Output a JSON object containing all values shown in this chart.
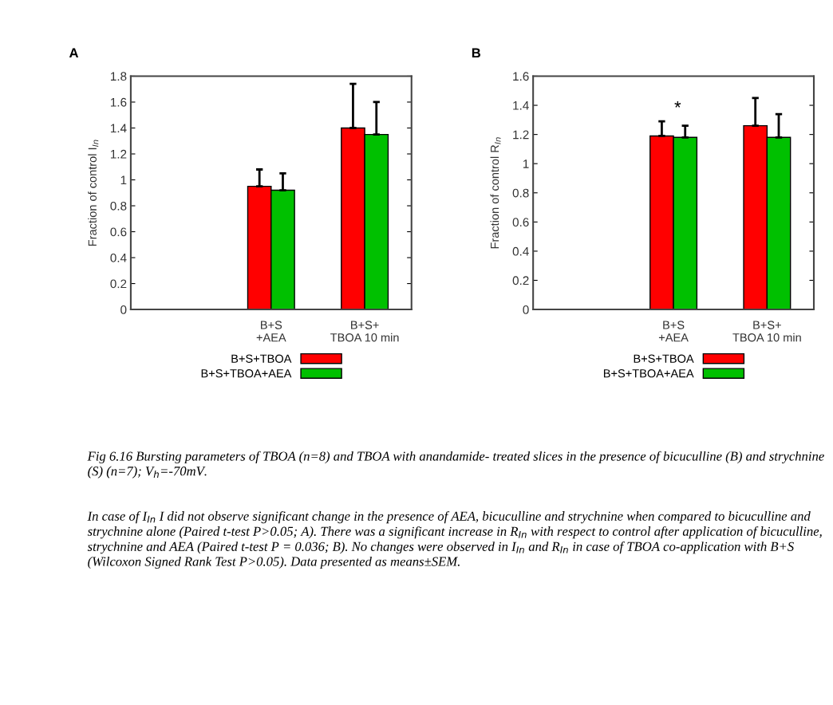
{
  "chart_data": [
    {
      "type": "bar",
      "title": "A",
      "ylabel": "Fraction of control I$_{In}$",
      "categories": [
        null,
        "B+S\n+AEA",
        "B+S+\nTBOA 10 min"
      ],
      "ylim": [
        0,
        1.8
      ],
      "yticks": [
        0,
        0.2,
        0.4,
        0.6,
        0.8,
        1,
        1.2,
        1.4,
        1.6,
        1.8
      ],
      "legend": "bottom",
      "grid": false,
      "series": [
        {
          "name": "B+S+TBOA",
          "color": "#ff0000",
          "values": [
            null,
            0.95,
            1.4
          ],
          "errors": [
            null,
            [
              0.95,
              1.08
            ],
            [
              1.4,
              1.74
            ]
          ]
        },
        {
          "name": "B+S+TBOA+AEA",
          "color": "#00c000",
          "values": [
            null,
            0.92,
            1.35
          ],
          "errors": [
            null,
            [
              0.92,
              1.05
            ],
            [
              1.35,
              1.6
            ]
          ]
        }
      ]
    },
    {
      "type": "bar",
      "title": "B",
      "ylabel": "Fraction of control R$_{In}$",
      "categories": [
        null,
        "B+S\n+AEA",
        "B+S+\nTBOA 10 min"
      ],
      "ylim": [
        0,
        1.6
      ],
      "yticks": [
        0,
        0.2,
        0.4,
        0.6,
        0.8,
        1,
        1.2,
        1.4,
        1.6
      ],
      "legend": "bottom",
      "grid": false,
      "annotations": [
        "*",
        "Fig 6.16 Bursting parameters of TBOA (n=8) and TBOA with anandamide- treated slices in the presence of bicuculline (B) and strychnine (S) (n=7); V$_{h}$=-70mV.",
        "In case of I$_{In}$ I did not observe significant change in the presence of AEA, bicuculline and strychnine when compared to bicuculline and strychnine alone (Paired t-test P>0.05; A). There was a significant increase in R$_{In}$ with respect to control after application of bicuculline, strychnine and AEA (Paired t-test P = 0.036; B). No changes were observed in I$_{In}$ and R$_{In}$ in case of TBOA co-application with B+S (Wilcoxon Signed Rank Test P>0.05). Data presented as means±SEM."
      ],
      "series": [
        {
          "name": "B+S+TBOA",
          "color": "#ff0000",
          "values": [
            null,
            1.19,
            1.26
          ],
          "errors": [
            null,
            [
              1.19,
              1.29
            ],
            [
              1.26,
              1.45
            ]
          ]
        },
        {
          "name": "B+S+TBOA+AEA",
          "color": "#00c000",
          "values": [
            null,
            1.18,
            1.18
          ],
          "errors": [
            null,
            [
              1.18,
              1.26
            ],
            [
              1.18,
              1.34
            ]
          ]
        }
      ]
    }
  ]
}
